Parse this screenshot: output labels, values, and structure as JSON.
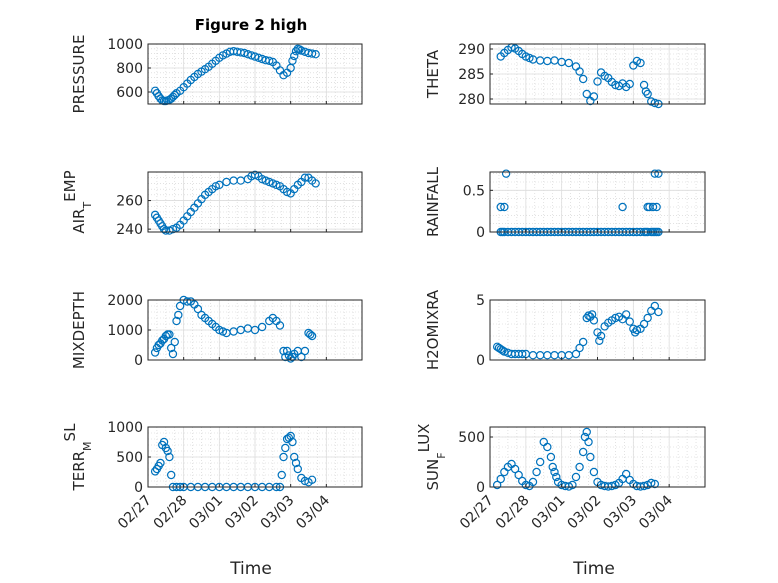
{
  "title": "Figure 2 high",
  "xlabel": "Time",
  "marker_color": "#0072bd",
  "chart_data": [
    {
      "type": "scatter",
      "ylabel": "PRESSURE",
      "ylim": [
        500,
        1000
      ],
      "yticks": [
        600,
        800,
        1000
      ],
      "xticks": [
        "02/27",
        "02/28",
        "03/01",
        "03/02",
        "03/03",
        "03/04"
      ],
      "xlim": [
        0,
        6
      ],
      "x": [
        0.2,
        0.25,
        0.3,
        0.35,
        0.4,
        0.45,
        0.5,
        0.55,
        0.6,
        0.65,
        0.7,
        0.75,
        0.8,
        0.9,
        1.0,
        1.1,
        1.2,
        1.3,
        1.4,
        1.5,
        1.6,
        1.7,
        1.8,
        1.9,
        2.0,
        2.1,
        2.2,
        2.3,
        2.4,
        2.5,
        2.6,
        2.7,
        2.8,
        2.9,
        3.0,
        3.1,
        3.2,
        3.3,
        3.4,
        3.5,
        3.6,
        3.7,
        3.8,
        3.9,
        4.0,
        4.05,
        4.1,
        4.15,
        4.2,
        4.25,
        4.3,
        4.4,
        4.5,
        4.6,
        4.7
      ],
      "y": [
        610,
        590,
        565,
        545,
        530,
        525,
        525,
        530,
        535,
        545,
        560,
        575,
        590,
        610,
        640,
        670,
        700,
        725,
        750,
        770,
        790,
        810,
        835,
        860,
        885,
        905,
        920,
        935,
        940,
        935,
        930,
        925,
        915,
        905,
        895,
        885,
        875,
        865,
        860,
        850,
        820,
        780,
        740,
        760,
        800,
        860,
        900,
        940,
        960,
        955,
        945,
        935,
        925,
        920,
        915
      ]
    },
    {
      "type": "scatter",
      "ylabel": "THETA",
      "ylim": [
        279,
        291
      ],
      "yticks": [
        280,
        285,
        290
      ],
      "xticks": [
        "02/27",
        "02/28",
        "03/01",
        "03/02",
        "03/03",
        "03/04"
      ],
      "xlim": [
        0,
        6
      ],
      "x": [
        0.3,
        0.4,
        0.5,
        0.6,
        0.7,
        0.8,
        0.9,
        1.0,
        1.1,
        1.2,
        1.4,
        1.6,
        1.8,
        2.0,
        2.2,
        2.4,
        2.5,
        2.6,
        2.7,
        2.8,
        2.9,
        3.0,
        3.1,
        3.2,
        3.3,
        3.4,
        3.5,
        3.6,
        3.7,
        3.8,
        3.9,
        4.0,
        4.1,
        4.2,
        4.3,
        4.35,
        4.4,
        4.5,
        4.6,
        4.7
      ],
      "y": [
        288.5,
        289.2,
        289.8,
        290.3,
        290.1,
        289.6,
        289,
        288.5,
        288.2,
        287.9,
        287.7,
        287.6,
        287.7,
        287.4,
        287.2,
        286.5,
        285.5,
        284,
        281,
        279.6,
        280.5,
        283.5,
        285.3,
        284.6,
        284.2,
        283.4,
        282.8,
        282.6,
        283.1,
        282.4,
        283,
        286.7,
        287.6,
        287.2,
        282.8,
        281.5,
        281,
        279.5,
        279.2,
        279
      ]
    },
    {
      "type": "scatter",
      "ylabel": "AIR_TEMP",
      "ylim": [
        238,
        280
      ],
      "yticks": [
        240,
        260
      ],
      "xticks": [
        "02/27",
        "02/28",
        "03/01",
        "03/02",
        "03/03",
        "03/04"
      ],
      "xlim": [
        0,
        6
      ],
      "x": [
        0.2,
        0.25,
        0.3,
        0.35,
        0.4,
        0.45,
        0.5,
        0.6,
        0.7,
        0.8,
        0.9,
        1.0,
        1.1,
        1.2,
        1.3,
        1.4,
        1.5,
        1.6,
        1.7,
        1.8,
        1.9,
        2.0,
        2.2,
        2.4,
        2.6,
        2.8,
        2.9,
        3.0,
        3.1,
        3.2,
        3.3,
        3.4,
        3.5,
        3.6,
        3.7,
        3.8,
        3.9,
        4.0,
        4.1,
        4.2,
        4.3,
        4.4,
        4.5,
        4.6,
        4.7
      ],
      "y": [
        250,
        248,
        246,
        244,
        242,
        240,
        239,
        239,
        240,
        241,
        243,
        246,
        249,
        252,
        255,
        258,
        261,
        264,
        266,
        268,
        270,
        271,
        273,
        274,
        274,
        275,
        277,
        278,
        277,
        275,
        274,
        273,
        272,
        271,
        270,
        268,
        266,
        265,
        268,
        271,
        273,
        276,
        276,
        274,
        272
      ]
    },
    {
      "type": "scatter",
      "ylabel": "RAINFALL",
      "ylim": [
        0,
        0.72
      ],
      "yticks": [
        0,
        0.5
      ],
      "xticks": [
        "02/27",
        "02/28",
        "03/01",
        "03/02",
        "03/03",
        "03/04"
      ],
      "xlim": [
        0,
        6
      ],
      "x": [
        0.3,
        0.35,
        0.4,
        0.5,
        0.6,
        0.7,
        0.8,
        0.9,
        1.0,
        1.1,
        1.2,
        1.3,
        1.4,
        1.5,
        1.6,
        1.7,
        1.8,
        1.9,
        2.0,
        2.1,
        2.2,
        2.3,
        2.4,
        2.5,
        2.6,
        2.7,
        2.8,
        2.9,
        3.0,
        3.1,
        3.2,
        3.3,
        3.4,
        3.5,
        3.6,
        3.7,
        3.8,
        3.9,
        4.0,
        4.1,
        4.2,
        4.3,
        4.35,
        4.4,
        4.5,
        4.55,
        4.6,
        4.65,
        4.7,
        0.3,
        0.4,
        0.45,
        3.7,
        4.4,
        4.45,
        4.55,
        4.6,
        4.65,
        4.7
      ],
      "y": [
        0,
        0,
        0,
        0,
        0,
        0,
        0,
        0,
        0,
        0,
        0,
        0,
        0,
        0,
        0,
        0,
        0,
        0,
        0,
        0,
        0,
        0,
        0,
        0,
        0,
        0,
        0,
        0,
        0,
        0,
        0,
        0,
        0,
        0,
        0,
        0,
        0,
        0,
        0,
        0,
        0,
        0,
        0,
        0,
        0,
        0,
        0,
        0,
        0,
        0.3,
        0.3,
        0.7,
        0.3,
        0.3,
        0.3,
        0.3,
        0.7,
        0.3,
        0.7
      ]
    },
    {
      "type": "scatter",
      "ylabel": "MIXDEPTH",
      "ylim": [
        0,
        2000
      ],
      "yticks": [
        0,
        1000,
        2000
      ],
      "xticks": [
        "02/27",
        "02/28",
        "03/01",
        "03/02",
        "03/03",
        "03/04"
      ],
      "xlim": [
        0,
        6
      ],
      "x": [
        0.2,
        0.25,
        0.3,
        0.35,
        0.4,
        0.45,
        0.5,
        0.55,
        0.6,
        0.65,
        0.7,
        0.75,
        0.8,
        0.85,
        0.9,
        1.0,
        1.1,
        1.2,
        1.3,
        1.4,
        1.5,
        1.6,
        1.7,
        1.8,
        1.9,
        2.0,
        2.1,
        2.2,
        2.4,
        2.6,
        2.8,
        3.0,
        3.2,
        3.4,
        3.5,
        3.6,
        3.7,
        3.8,
        3.85,
        3.9,
        3.95,
        4.0,
        4.05,
        4.1,
        4.2,
        4.3,
        4.4,
        4.5,
        4.55,
        4.6
      ],
      "y": [
        250,
        400,
        500,
        550,
        650,
        700,
        800,
        850,
        850,
        400,
        200,
        600,
        1300,
        1500,
        1800,
        2000,
        1950,
        1950,
        1850,
        1700,
        1500,
        1400,
        1300,
        1200,
        1100,
        1000,
        950,
        900,
        950,
        1000,
        1050,
        1000,
        1100,
        1300,
        1400,
        1300,
        1150,
        300,
        100,
        300,
        150,
        50,
        100,
        200,
        300,
        100,
        300,
        900,
        850,
        800
      ]
    },
    {
      "type": "scatter",
      "ylabel": "H2OMIXRA",
      "ylim": [
        0,
        5
      ],
      "yticks": [
        0,
        5
      ],
      "xticks": [
        "02/27",
        "02/28",
        "03/01",
        "03/02",
        "03/03",
        "03/04"
      ],
      "xlim": [
        0,
        6
      ],
      "x": [
        0.2,
        0.25,
        0.3,
        0.35,
        0.4,
        0.5,
        0.6,
        0.7,
        0.8,
        0.9,
        1.0,
        1.2,
        1.4,
        1.6,
        1.8,
        2.0,
        2.2,
        2.4,
        2.5,
        2.6,
        2.7,
        2.75,
        2.8,
        2.85,
        2.9,
        3.0,
        3.05,
        3.1,
        3.2,
        3.3,
        3.4,
        3.5,
        3.6,
        3.7,
        3.8,
        3.9,
        4.0,
        4.05,
        4.1,
        4.2,
        4.3,
        4.4,
        4.5,
        4.6,
        4.7
      ],
      "y": [
        1.1,
        1.0,
        0.9,
        0.8,
        0.7,
        0.6,
        0.5,
        0.5,
        0.5,
        0.5,
        0.5,
        0.4,
        0.4,
        0.4,
        0.4,
        0.4,
        0.4,
        0.5,
        1.0,
        1.5,
        3.5,
        3.7,
        3.6,
        3.8,
        3.3,
        2.3,
        1.6,
        2.0,
        2.8,
        3.1,
        3.3,
        3.5,
        3.6,
        3.4,
        3.8,
        3.2,
        2.6,
        2.3,
        2.5,
        2.6,
        3.0,
        3.5,
        4.1,
        4.5,
        4.0
      ]
    },
    {
      "type": "scatter",
      "ylabel": "TERR_MSL",
      "ylim": [
        0,
        1000
      ],
      "yticks": [
        0,
        500,
        1000
      ],
      "xticks": [
        "02/27",
        "02/28",
        "03/01",
        "03/02",
        "03/03",
        "03/04"
      ],
      "xlim": [
        0,
        6
      ],
      "x": [
        0.2,
        0.25,
        0.3,
        0.35,
        0.4,
        0.45,
        0.5,
        0.55,
        0.6,
        0.65,
        0.7,
        0.8,
        0.9,
        1.0,
        1.2,
        1.4,
        1.6,
        1.8,
        2.0,
        2.2,
        2.4,
        2.6,
        2.8,
        3.0,
        3.2,
        3.4,
        3.6,
        3.7,
        3.75,
        3.8,
        3.85,
        3.9,
        3.95,
        4.0,
        4.05,
        4.1,
        4.15,
        4.2,
        4.3,
        4.4,
        4.5,
        4.6
      ],
      "y": [
        260,
        300,
        350,
        400,
        700,
        750,
        650,
        600,
        500,
        200,
        0,
        0,
        0,
        0,
        0,
        0,
        0,
        0,
        0,
        0,
        0,
        0,
        0,
        0,
        0,
        0,
        0,
        0,
        200,
        500,
        650,
        800,
        820,
        850,
        750,
        500,
        400,
        300,
        150,
        100,
        80,
        120
      ]
    },
    {
      "type": "scatter",
      "ylabel": "SUN_FLUX",
      "ylim": [
        0,
        600
      ],
      "yticks": [
        0,
        500
      ],
      "xticks": [
        "02/27",
        "02/28",
        "03/01",
        "03/02",
        "03/03",
        "03/04"
      ],
      "xlim": [
        0,
        6
      ],
      "x": [
        0.2,
        0.3,
        0.4,
        0.5,
        0.6,
        0.7,
        0.8,
        0.9,
        1.0,
        1.1,
        1.2,
        1.3,
        1.4,
        1.5,
        1.6,
        1.7,
        1.75,
        1.8,
        1.85,
        1.9,
        2.0,
        2.1,
        2.2,
        2.3,
        2.4,
        2.5,
        2.6,
        2.65,
        2.7,
        2.75,
        2.8,
        2.9,
        3.0,
        3.1,
        3.2,
        3.3,
        3.4,
        3.5,
        3.6,
        3.7,
        3.8,
        3.9,
        4.0,
        4.1,
        4.2,
        4.3,
        4.4,
        4.5,
        4.6
      ],
      "y": [
        20,
        80,
        150,
        200,
        230,
        180,
        120,
        60,
        20,
        10,
        50,
        150,
        250,
        450,
        400,
        300,
        200,
        150,
        100,
        50,
        20,
        10,
        5,
        20,
        100,
        200,
        350,
        500,
        550,
        450,
        300,
        150,
        50,
        20,
        10,
        5,
        10,
        20,
        40,
        80,
        130,
        70,
        30,
        10,
        5,
        10,
        20,
        40,
        30
      ]
    }
  ]
}
